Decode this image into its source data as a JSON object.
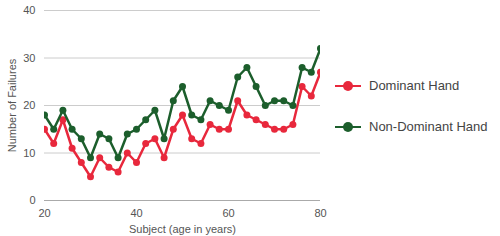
{
  "chart_data": {
    "type": "line",
    "x_label": "Subject (age in years)",
    "y_label": "Number of Failures",
    "x": [
      20,
      22,
      24,
      26,
      28,
      30,
      32,
      34,
      36,
      38,
      40,
      42,
      44,
      46,
      48,
      50,
      52,
      54,
      56,
      58,
      60,
      62,
      64,
      66,
      68,
      70,
      72,
      74,
      76,
      78,
      80
    ],
    "series": [
      {
        "name": "Dominant Hand",
        "color": "#e8283c",
        "marker": "circle",
        "values": [
          15,
          12,
          17,
          11,
          8,
          5,
          9,
          7,
          6,
          10,
          8,
          12,
          13,
          9,
          15,
          18,
          13,
          12,
          16,
          15,
          15,
          21,
          18,
          17,
          16,
          15,
          15,
          16,
          24,
          22,
          27
        ]
      },
      {
        "name": "Non-Dominant Hand",
        "color": "#1c5e2c",
        "marker": "circle",
        "values": [
          18,
          15,
          19,
          15,
          13,
          9,
          14,
          13,
          9,
          14,
          15,
          17,
          19,
          13,
          21,
          24,
          18,
          17,
          21,
          20,
          19,
          26,
          28,
          24,
          20,
          21,
          21,
          20,
          28,
          27,
          32
        ]
      }
    ],
    "xlim": [
      20,
      80
    ],
    "xticks": [
      20,
      40,
      60,
      80
    ],
    "ylim": [
      0,
      40
    ],
    "yticks": [
      0,
      10,
      20,
      30,
      40
    ],
    "grid": true,
    "legend": "right"
  }
}
